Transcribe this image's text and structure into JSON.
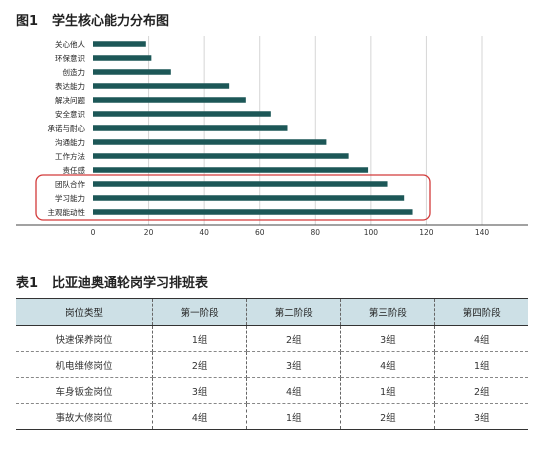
{
  "figure": {
    "number": "图1",
    "title": "学生核心能力分布图"
  },
  "chart_data": {
    "type": "bar",
    "orientation": "horizontal",
    "categories": [
      "关心他人",
      "环保意识",
      "创造力",
      "表达能力",
      "解决问题",
      "安全意识",
      "承诺与耐心",
      "沟通能力",
      "工作方法",
      "责任感",
      "团队合作",
      "学习能力",
      "主观能动性"
    ],
    "values": [
      19,
      21,
      28,
      49,
      55,
      64,
      70,
      84,
      92,
      99,
      106,
      112,
      115
    ],
    "xlim": [
      0,
      140
    ],
    "xticks": [
      "0",
      "20",
      "40",
      "60",
      "80",
      "100",
      "120",
      "140"
    ],
    "grid": true,
    "bar_color": "#1c5757",
    "highlight": {
      "categories": [
        "团队合作",
        "学习能力",
        "主观能动性"
      ],
      "color": "#d23a3a"
    }
  },
  "table": {
    "number": "表1",
    "title": "比亚迪奥通轮岗学习排班表",
    "headers": [
      "岗位类型",
      "第一阶段",
      "第二阶段",
      "第三阶段",
      "第四阶段"
    ],
    "rows": [
      [
        "快速保养岗位",
        "1组",
        "2组",
        "3组",
        "4组"
      ],
      [
        "机电维修岗位",
        "2组",
        "3组",
        "4组",
        "1组"
      ],
      [
        "车身钣金岗位",
        "3组",
        "4组",
        "1组",
        "2组"
      ],
      [
        "事故大修岗位",
        "4组",
        "1组",
        "2组",
        "3组"
      ]
    ]
  }
}
